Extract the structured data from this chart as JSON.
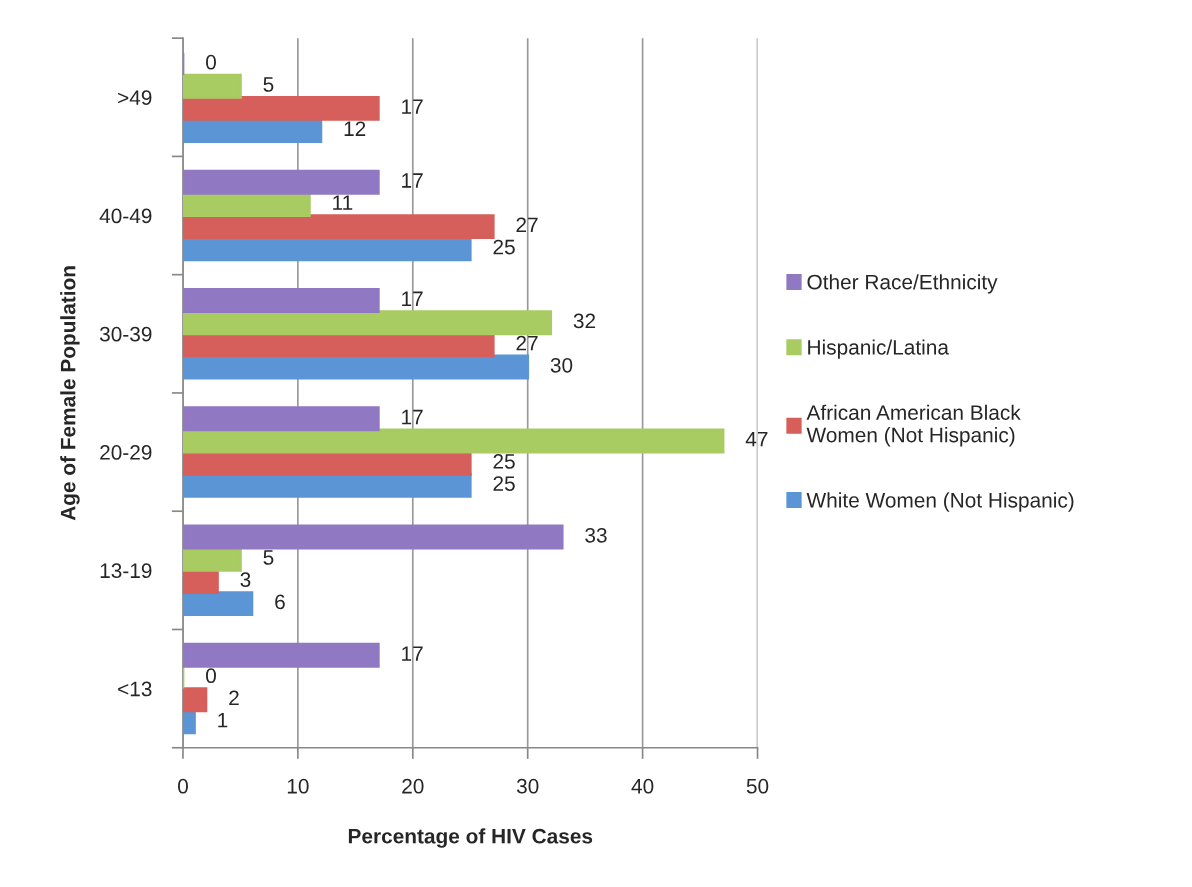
{
  "chart_data": {
    "type": "bar",
    "orientation": "horizontal",
    "xlabel": "Percentage of HIV Cases",
    "ylabel": "Age of Female Population",
    "categories": [
      ">49",
      "40-49",
      "30-39",
      "20-29",
      "13-19",
      "<13"
    ],
    "series": [
      {
        "name": "White Women (Not Hispanic)",
        "color": "#5b95d6",
        "values": [
          12,
          25,
          30,
          25,
          6,
          1
        ]
      },
      {
        "name": "African American Black\nWomen (Not Hispanic)",
        "color": "#d65f5b",
        "values": [
          17,
          27,
          27,
          25,
          3,
          2
        ]
      },
      {
        "name": "Hispanic/Latina",
        "color": "#a8cc62",
        "values": [
          5,
          11,
          32,
          47,
          5,
          0
        ]
      },
      {
        "name": "Other Race/Ethnicity",
        "color": "#9079c2",
        "values": [
          0,
          17,
          17,
          17,
          33,
          17
        ]
      }
    ],
    "xlim": [
      0,
      50
    ],
    "xticks": [
      0,
      10,
      20,
      30,
      40,
      50
    ],
    "grid": "x",
    "legend": "right",
    "data_labels": true
  }
}
